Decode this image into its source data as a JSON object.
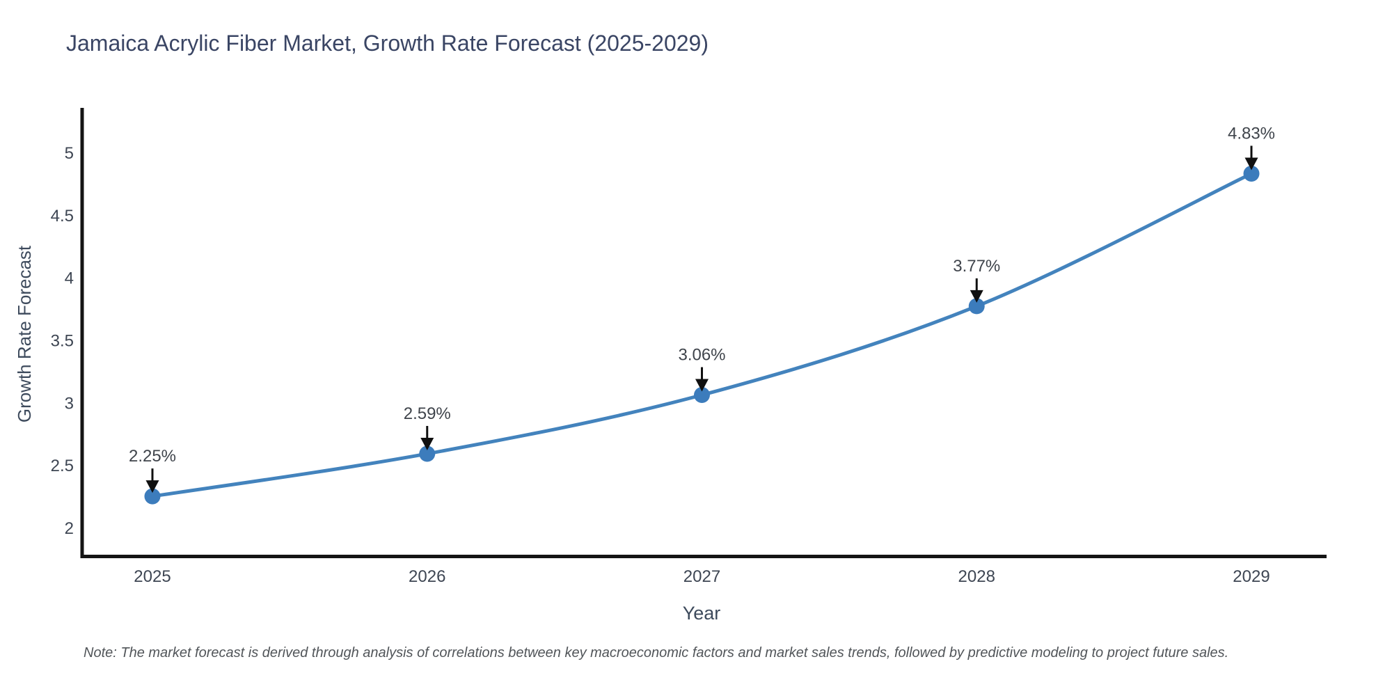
{
  "title": "Jamaica Acrylic Fiber Market, Growth Rate Forecast (2025-2029)",
  "note": "Note: The market forecast is derived through analysis of correlations between key macroeconomic factors and market sales trends, followed by predictive modeling to project future sales.",
  "chart_data": {
    "type": "line",
    "title": "Jamaica Acrylic Fiber Market, Growth Rate Forecast (2025-2029)",
    "xlabel": "Year",
    "ylabel": "Growth Rate Forecast",
    "x": [
      2025,
      2026,
      2027,
      2028,
      2029
    ],
    "values": [
      2.25,
      2.59,
      3.06,
      3.77,
      4.83
    ],
    "point_labels": [
      "2.25%",
      "2.59%",
      "3.06%",
      "3.77%",
      "4.83%"
    ],
    "x_tick_labels": [
      "2025",
      "2026",
      "2027",
      "2028",
      "2029"
    ],
    "y_ticks": [
      2,
      2.5,
      3,
      3.5,
      4,
      4.5,
      5
    ],
    "y_tick_labels": [
      "2",
      "2.5",
      "3",
      "3.5",
      "4",
      "4.5",
      "5"
    ],
    "ylim": [
      1.77,
      5.36
    ],
    "xlim": [
      2024.73,
      2029.28
    ],
    "grid": false,
    "legend": "none",
    "marker_style": "circle",
    "annotation_arrow": "down",
    "colors": {
      "line": "#4383bd",
      "marker": "#3c7cbc",
      "axis": "#141414",
      "arrow": "#101010",
      "title": "#3a4564",
      "axis_title": "#3d4a5c",
      "tick_label": "#3e4653",
      "annotation_text": "#3f444b",
      "note": "#515559",
      "background": "#ffffff"
    }
  }
}
